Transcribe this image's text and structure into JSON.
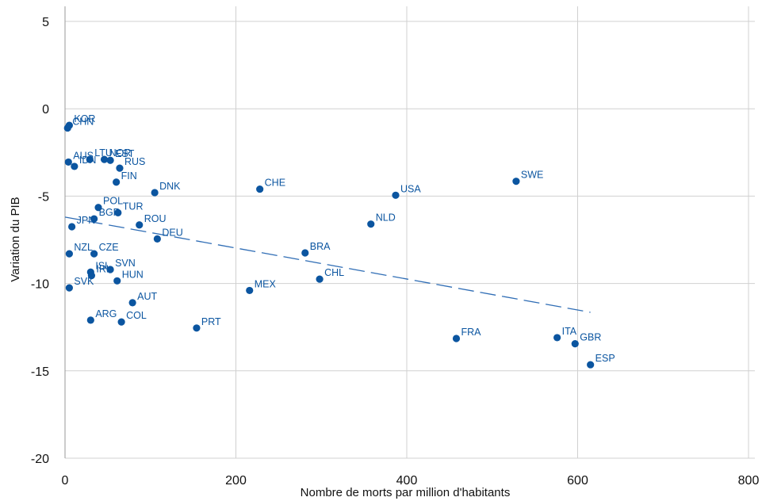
{
  "chart_data": {
    "type": "scatter",
    "xlabel": "Nombre de morts par million d'habitants",
    "ylabel": "Variation du PIB",
    "xlim": [
      0,
      800
    ],
    "ylim": [
      -20,
      5
    ],
    "xticks": [
      0,
      200,
      400,
      600,
      800
    ],
    "yticks": [
      5,
      0,
      -5,
      -10,
      -15,
      -20
    ],
    "grid": true,
    "colors": {
      "points": "#0b55a0",
      "labels": "#0b55a0",
      "fit_line": "#2f6db5"
    },
    "points": [
      {
        "label": "KOR",
        "x": 5,
        "y": -0.95
      },
      {
        "label": "CHN",
        "x": 3,
        "y": -1.1
      },
      {
        "label": "AUS",
        "x": 4,
        "y": -3.05
      },
      {
        "label": "IDN",
        "x": 11,
        "y": -3.3
      },
      {
        "label": "LTU",
        "x": 29,
        "y": -2.9
      },
      {
        "label": "NOR",
        "x": 46,
        "y": -2.9
      },
      {
        "label": "EST",
        "x": 53,
        "y": -2.95
      },
      {
        "label": "RUS",
        "x": 64,
        "y": -3.4
      },
      {
        "label": "FIN",
        "x": 60,
        "y": -4.2
      },
      {
        "label": "DNK",
        "x": 105,
        "y": -4.8
      },
      {
        "label": "POL",
        "x": 39,
        "y": -5.65
      },
      {
        "label": "TUR",
        "x": 62,
        "y": -5.95
      },
      {
        "label": "BGR",
        "x": 34,
        "y": -6.3
      },
      {
        "label": "JPN",
        "x": 8,
        "y": -6.75
      },
      {
        "label": "ROU",
        "x": 87,
        "y": -6.65
      },
      {
        "label": "DEU",
        "x": 108,
        "y": -7.45
      },
      {
        "label": "NZL",
        "x": 5,
        "y": -8.3
      },
      {
        "label": "CZE",
        "x": 34,
        "y": -8.3
      },
      {
        "label": "SVN",
        "x": 53,
        "y": -9.2
      },
      {
        "label": "ISL",
        "x": 30,
        "y": -9.35
      },
      {
        "label": "IRL",
        "x": 31,
        "y": -9.55
      },
      {
        "label": "HUN",
        "x": 61,
        "y": -9.85
      },
      {
        "label": "SVK",
        "x": 5,
        "y": -10.25
      },
      {
        "label": "AUT",
        "x": 79,
        "y": -11.1
      },
      {
        "label": "ARG",
        "x": 30,
        "y": -12.1
      },
      {
        "label": "COL",
        "x": 66,
        "y": -12.2
      },
      {
        "label": "PRT",
        "x": 154,
        "y": -12.55
      },
      {
        "label": "CHE",
        "x": 228,
        "y": -4.6
      },
      {
        "label": "MEX",
        "x": 216,
        "y": -10.4
      },
      {
        "label": "BRA",
        "x": 281,
        "y": -8.25
      },
      {
        "label": "CHL",
        "x": 298,
        "y": -9.75
      },
      {
        "label": "USA",
        "x": 387,
        "y": -4.95
      },
      {
        "label": "NLD",
        "x": 358,
        "y": -6.6
      },
      {
        "label": "SWE",
        "x": 528,
        "y": -4.15
      },
      {
        "label": "FRA",
        "x": 458,
        "y": -13.15
      },
      {
        "label": "ITA",
        "x": 576,
        "y": -13.1
      },
      {
        "label": "GBR",
        "x": 597,
        "y": -13.45
      },
      {
        "label": "ESP",
        "x": 615,
        "y": -14.65
      }
    ],
    "fit_line": {
      "style": "dashed",
      "x": [
        0,
        615
      ],
      "y": [
        -6.2,
        -11.65
      ]
    }
  }
}
